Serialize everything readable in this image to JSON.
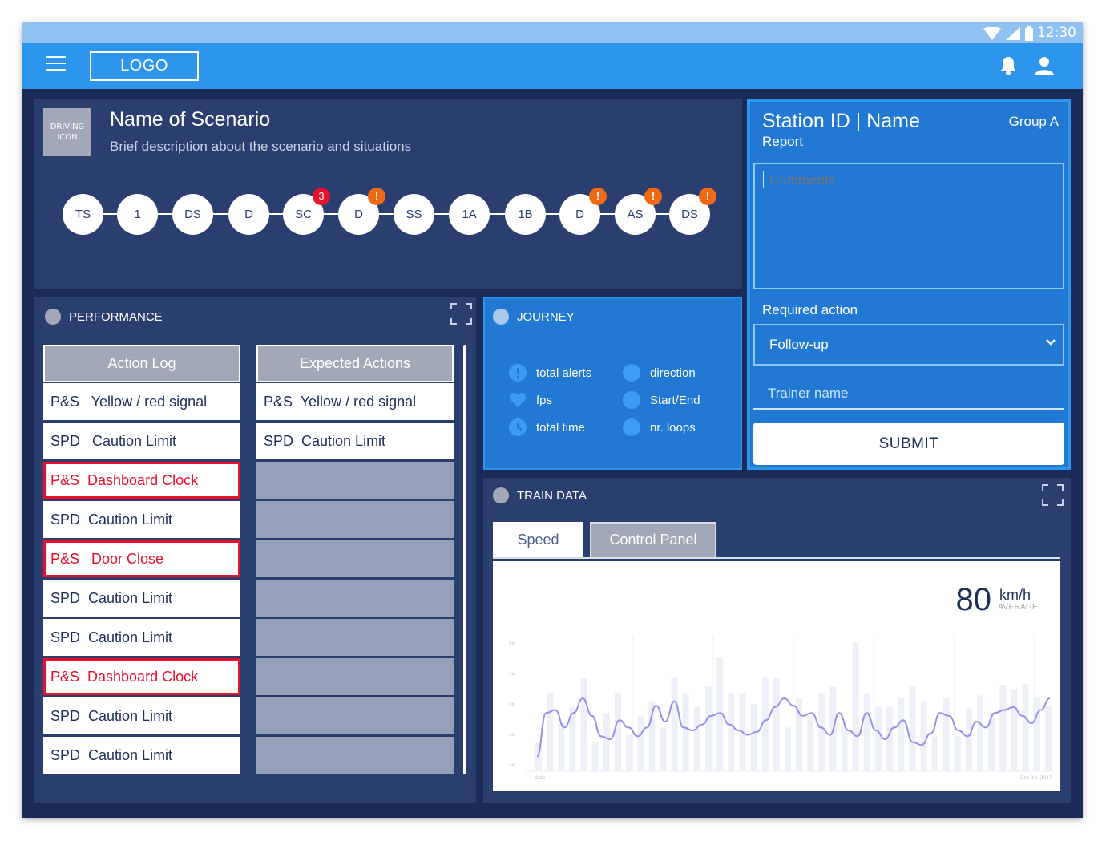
{
  "status_bar": {
    "time": "12:30",
    "icons": [
      "wifi-icon",
      "cell-signal-icon",
      "battery-icon"
    ]
  },
  "app_bar": {
    "logo": "LOGO",
    "icons": [
      "menu-icon",
      "bell-icon",
      "user-icon"
    ]
  },
  "scenario": {
    "icon_label_line1": "DRIVING",
    "icon_label_line2": "ICON",
    "title": "Name of Scenario",
    "description": "Brief description about the scenario and situations",
    "steps": [
      {
        "label": "TS",
        "badge": ""
      },
      {
        "label": "1",
        "badge": ""
      },
      {
        "label": "DS",
        "badge": ""
      },
      {
        "label": "D",
        "badge": ""
      },
      {
        "label": "SC",
        "badge": "3",
        "badge_type": "count"
      },
      {
        "label": "D",
        "badge": "!",
        "badge_type": "alert"
      },
      {
        "label": "SS",
        "badge": ""
      },
      {
        "label": "1A",
        "badge": ""
      },
      {
        "label": "1B",
        "badge": ""
      },
      {
        "label": "D",
        "badge": "!",
        "badge_type": "alert"
      },
      {
        "label": "AS",
        "badge": "!",
        "badge_type": "alert"
      },
      {
        "label": "DS",
        "badge": "!",
        "badge_type": "alert"
      }
    ]
  },
  "station": {
    "title": "Station ID | Name",
    "group": "Group A",
    "report": "Report",
    "comments_placeholder": "Comments",
    "required_action_label": "Required action",
    "required_action_value": "Follow-up",
    "trainer_placeholder": "Trainer name",
    "submit_label": "SUBMIT"
  },
  "performance": {
    "title": "PERFORMANCE",
    "action_log_header": "Action Log",
    "expected_header": "Expected Actions",
    "action_log": [
      {
        "text": "P&S   Yellow / red signal",
        "alert": false
      },
      {
        "text": "SPD   Caution Limit",
        "alert": false
      },
      {
        "text": "P&S  Dashboard Clock",
        "alert": true
      },
      {
        "text": "SPD  Caution Limit",
        "alert": false
      },
      {
        "text": "P&S   Door Close",
        "alert": true
      },
      {
        "text": "SPD  Caution Limit",
        "alert": false
      },
      {
        "text": "SPD  Caution Limit",
        "alert": false
      },
      {
        "text": "P&S  Dashboard Clock",
        "alert": true
      },
      {
        "text": "SPD  Caution Limit",
        "alert": false
      },
      {
        "text": "SPD  Caution Limit",
        "alert": false
      }
    ],
    "expected_actions": [
      "P&S  Yellow / red signal",
      "SPD  Caution Limit",
      "",
      "",
      "",
      "",
      "",
      "",
      "",
      ""
    ]
  },
  "journey": {
    "title": "JOURNEY",
    "items": [
      {
        "label": "total alerts",
        "icon": "alert-icon"
      },
      {
        "label": "direction",
        "icon": "circle-icon"
      },
      {
        "label": "fps",
        "icon": "heart-icon"
      },
      {
        "label": "Start/End",
        "icon": "circle-icon"
      },
      {
        "label": "total time",
        "icon": "clock-icon"
      },
      {
        "label": "nr. loops",
        "icon": "circle-icon"
      }
    ]
  },
  "train_data": {
    "title": "TRAIN DATA",
    "tabs": [
      "Speed",
      "Control Panel"
    ],
    "active_tab": "Speed",
    "average_value": "80",
    "average_unit": "km/h",
    "average_label": "AVERAGE",
    "colors": {
      "line": "#9a8fe8",
      "bars": "#eef0f7"
    }
  },
  "chart_data": {
    "type": "line",
    "title": "",
    "xlabel": "",
    "ylabel": "",
    "x_tick_start": "date",
    "x_tick_end": "Dec 10, 2017",
    "y_ticks": [
      "xx",
      "xx",
      "xx",
      "xx",
      "xx"
    ],
    "ylim": [
      0,
      100
    ],
    "grid": true,
    "series": [
      {
        "type": "line",
        "values": [
          10,
          40,
          42,
          30,
          40,
          50,
          38,
          24,
          22,
          35,
          30,
          24,
          30,
          45,
          34,
          48,
          30,
          28,
          32,
          38,
          40,
          32,
          28,
          25,
          27,
          35,
          44,
          50,
          45,
          38,
          40,
          30,
          25,
          40,
          28,
          24,
          40,
          28,
          22,
          30,
          35,
          20,
          18,
          26,
          40,
          38,
          28,
          24,
          34,
          30,
          40,
          42,
          44,
          38,
          33,
          42,
          50
        ]
      },
      {
        "type": "bar",
        "values": [
          20,
          54,
          33,
          44,
          64,
          20,
          40,
          54,
          25,
          38,
          48,
          30,
          64,
          54,
          44,
          58,
          78,
          54,
          53,
          46,
          64,
          64,
          30,
          50,
          38,
          54,
          58,
          30,
          88,
          53,
          44,
          44,
          50,
          58,
          48,
          24,
          50,
          24,
          43,
          52,
          40,
          59,
          56,
          60,
          51,
          45
        ]
      }
    ]
  }
}
